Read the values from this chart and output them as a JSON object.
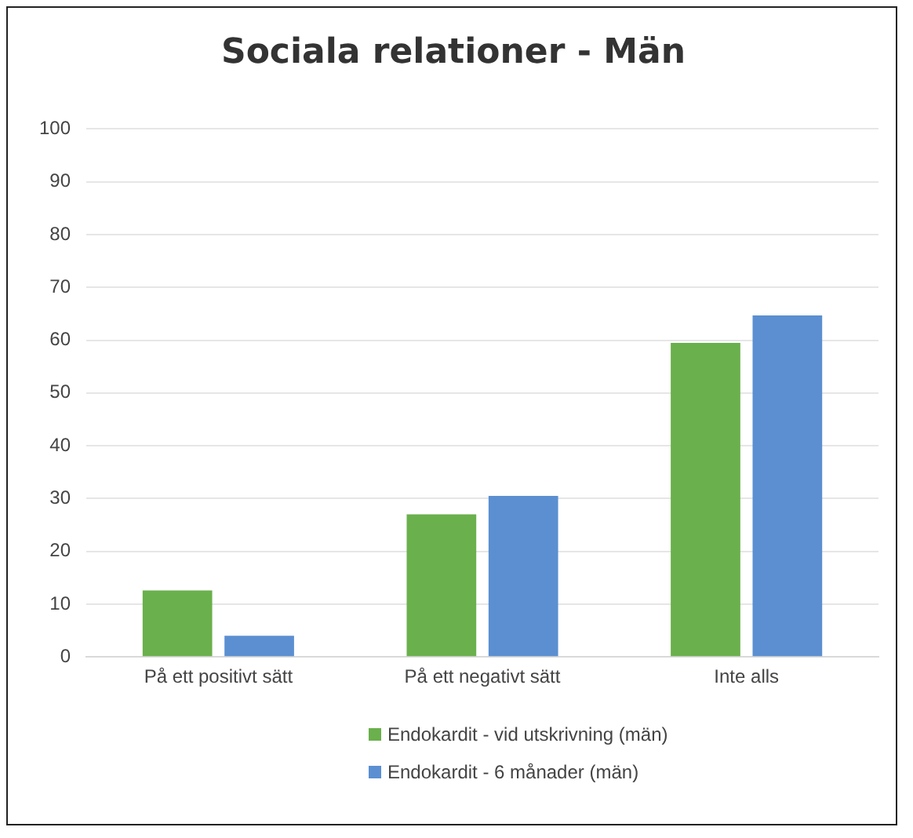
{
  "chart_data": {
    "type": "bar",
    "title": "Sociala relationer - Män",
    "categories": [
      "På ett positivt sätt",
      "På ett negativt sätt",
      "Inte alls"
    ],
    "series": [
      {
        "name": "Endokardit - vid utskrivning (män)",
        "color": "#6ab04c",
        "values": [
          12.6,
          27,
          59.5
        ]
      },
      {
        "name": "Endokardit - 6 månader (män)",
        "color": "#5b8fd1",
        "values": [
          4,
          30.5,
          64.7
        ]
      }
    ],
    "ylim": [
      0,
      100
    ],
    "yticks": [
      0,
      10,
      20,
      30,
      40,
      50,
      60,
      70,
      80,
      90,
      100
    ],
    "grid": "y",
    "legend": "bottom"
  }
}
